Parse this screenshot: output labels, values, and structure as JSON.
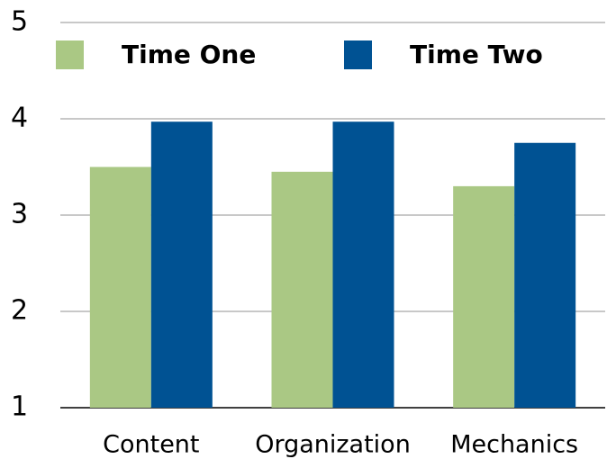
{
  "chart_data": {
    "type": "bar",
    "categories": [
      "Content",
      "Organization",
      "Mechanics"
    ],
    "series": [
      {
        "name": "Time One",
        "color": "#aac884",
        "values": [
          3.5,
          3.45,
          3.3
        ]
      },
      {
        "name": "Time Two",
        "color": "#005293",
        "values": [
          3.97,
          3.97,
          3.75
        ]
      }
    ],
    "ylim": [
      1,
      5
    ],
    "yticks": [
      1,
      2,
      3,
      4,
      5
    ],
    "grid": true,
    "legend": "top"
  }
}
